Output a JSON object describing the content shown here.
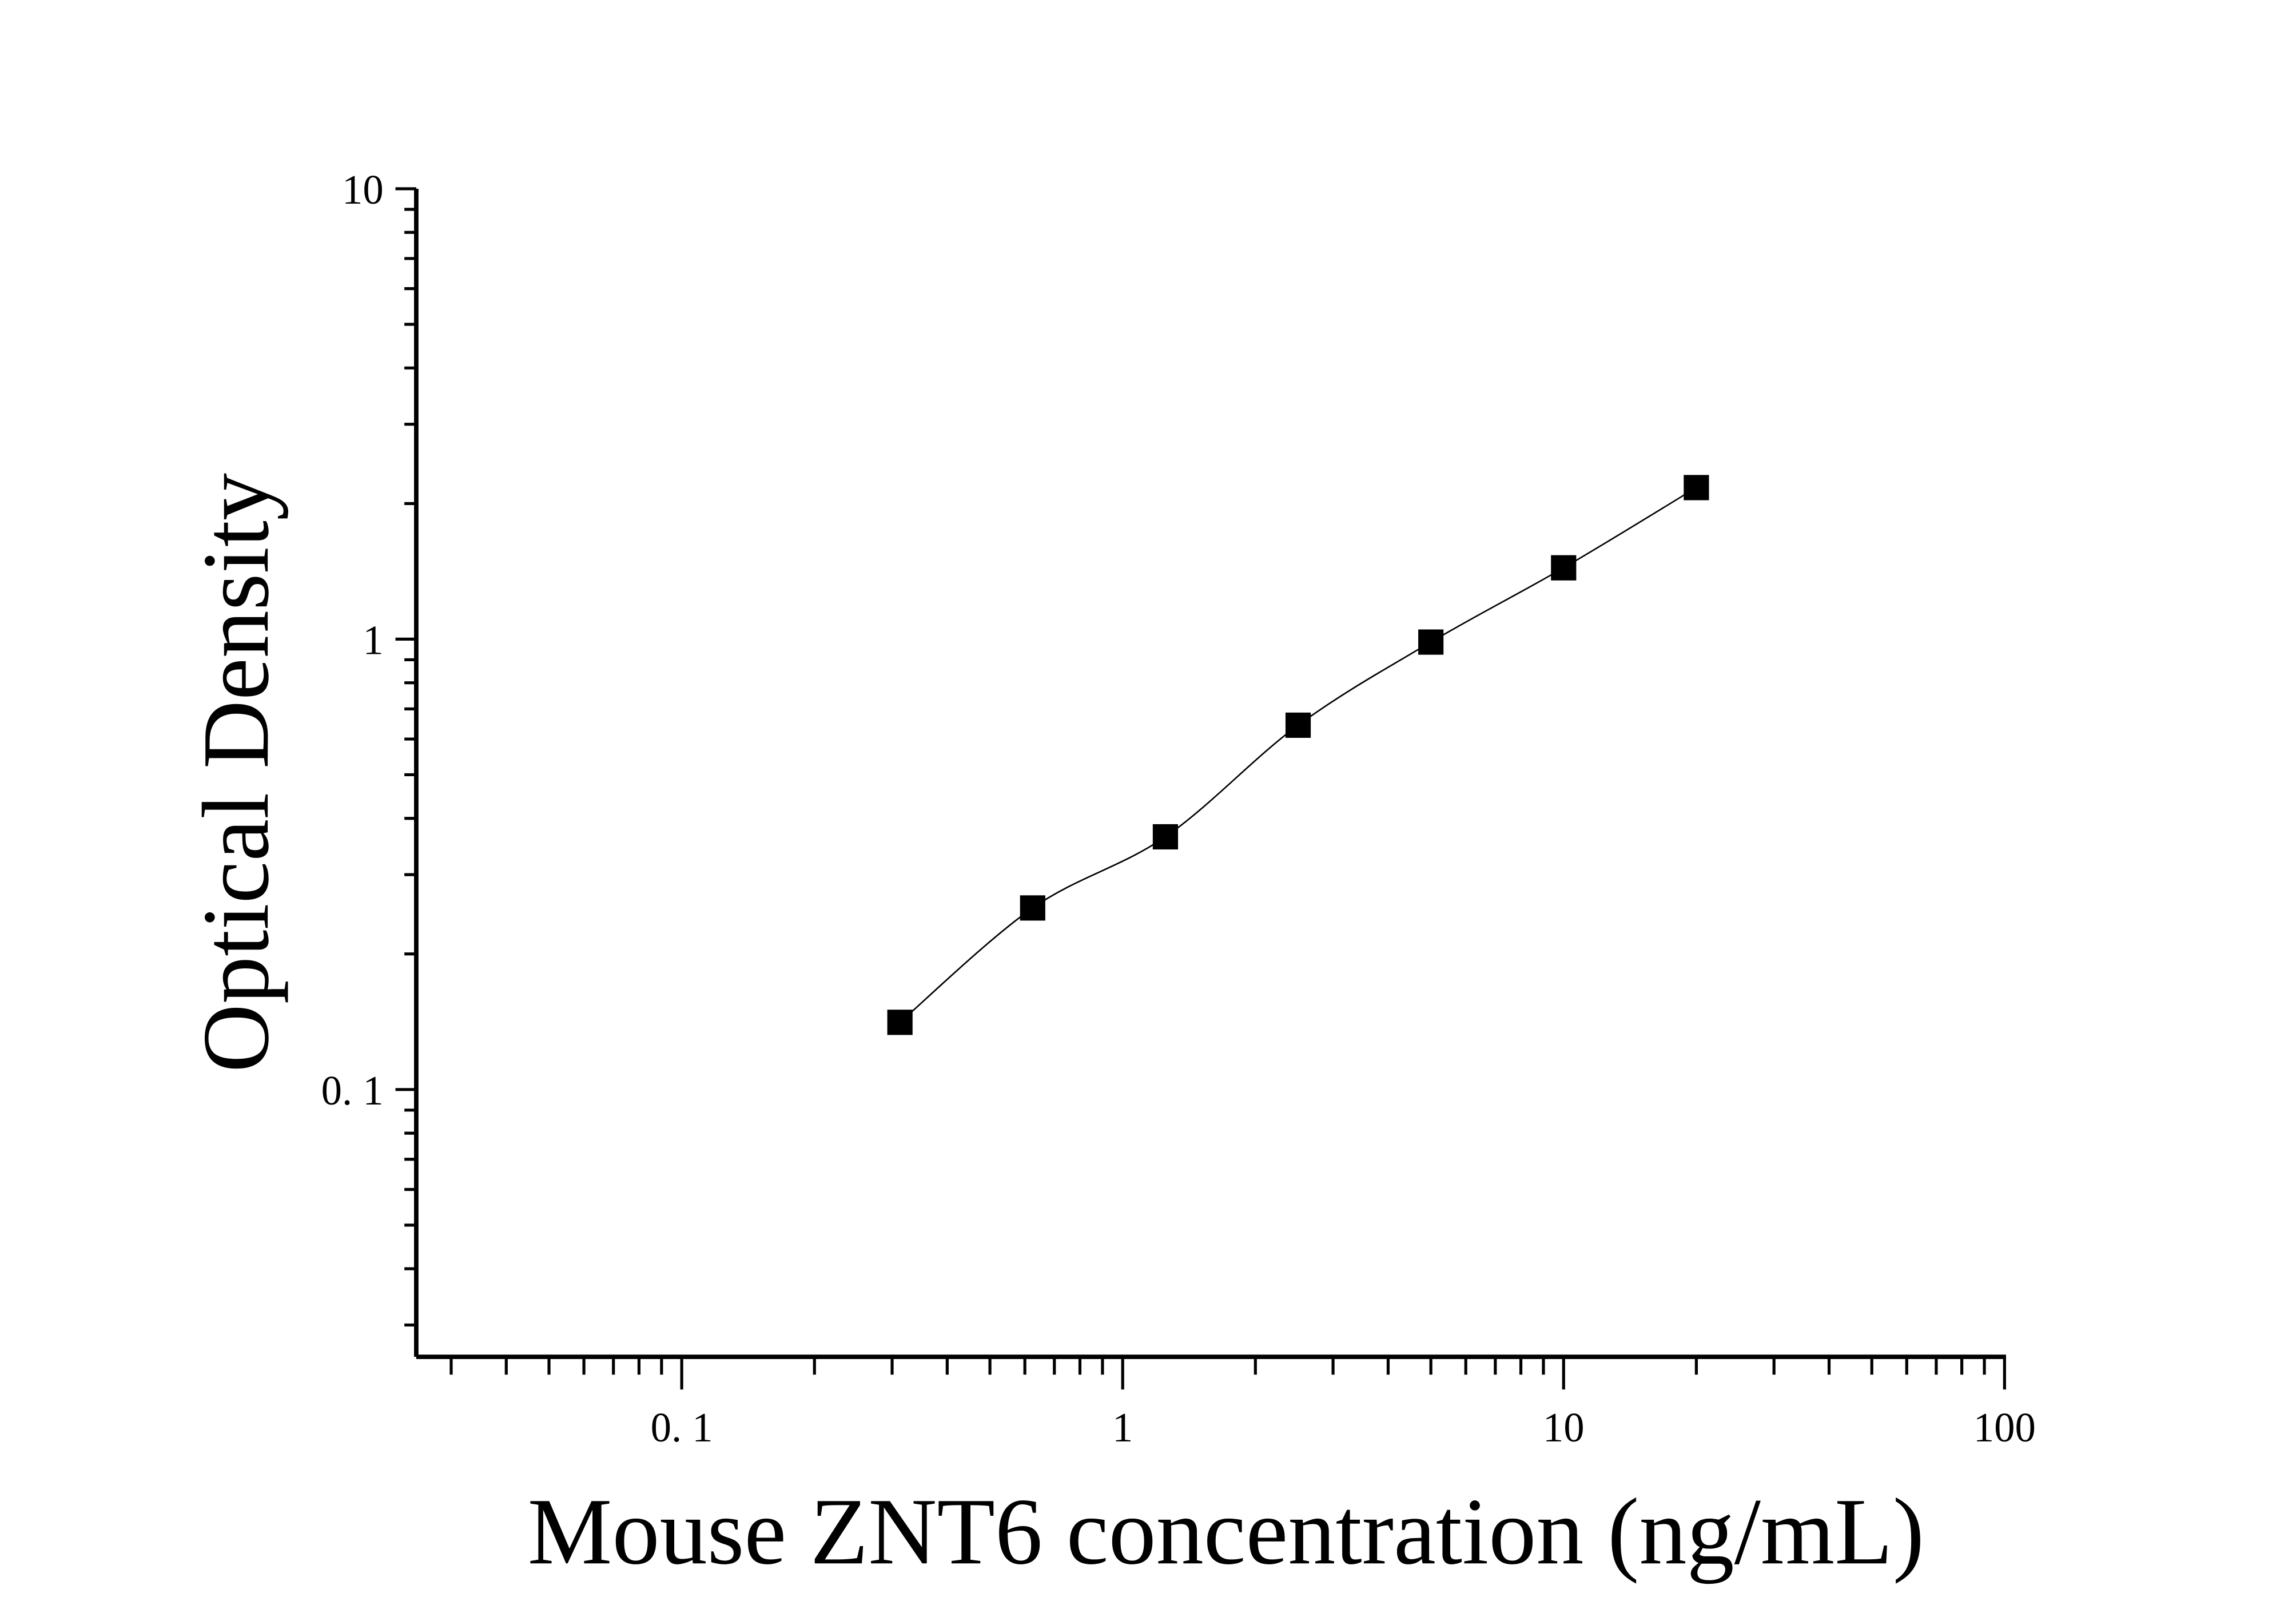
{
  "chart_data": {
    "type": "scatter",
    "title": "",
    "xlabel": "Mouse ZNT6 concentration (ng/mL)",
    "ylabel": "Optical Density",
    "xscale": "log",
    "yscale": "log",
    "xlim": [
      0.025,
      100
    ],
    "ylim": [
      0.0255,
      10
    ],
    "grid": false,
    "x_ticks": [
      {
        "v": 0.1,
        "label": "0. 1"
      },
      {
        "v": 1,
        "label": "1"
      },
      {
        "v": 10,
        "label": "10"
      },
      {
        "v": 100,
        "label": "100"
      }
    ],
    "y_ticks": [
      {
        "v": 0.1,
        "label": "0. 1"
      },
      {
        "v": 1,
        "label": "1"
      },
      {
        "v": 10,
        "label": "10"
      }
    ],
    "marker": "square",
    "color": "#000000",
    "fit_line": true,
    "points": [
      {
        "x": 0.3125,
        "y": 0.141
      },
      {
        "x": 0.625,
        "y": 0.253
      },
      {
        "x": 1.25,
        "y": 0.364
      },
      {
        "x": 2.5,
        "y": 0.644
      },
      {
        "x": 5,
        "y": 0.985
      },
      {
        "x": 10,
        "y": 1.44
      },
      {
        "x": 20,
        "y": 2.17
      }
    ]
  }
}
